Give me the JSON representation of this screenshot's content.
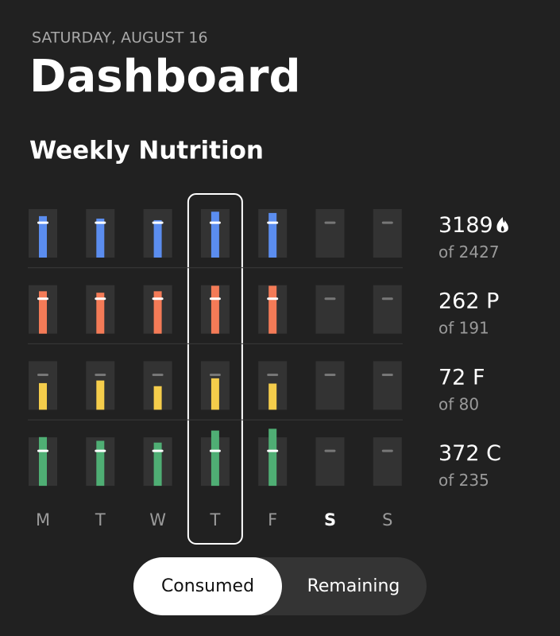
{
  "header": {
    "date": "SATURDAY, AUGUST 16",
    "title": "Dashboard"
  },
  "section_title": "Weekly Nutrition",
  "days": [
    "M",
    "T",
    "W",
    "T",
    "F",
    "S",
    "S"
  ],
  "selected_day": 3,
  "emphasized_day": 5,
  "goal_label": "of",
  "rows": [
    {
      "color": "#5b8def",
      "value": 3189,
      "unit": null,
      "goal": 2427,
      "daily": [
        2880,
        2710,
        2600,
        3189,
        3100,
        null,
        null
      ]
    },
    {
      "color": "#f47b57",
      "value": 262,
      "unit": "P",
      "goal": 191,
      "daily": [
        232,
        224,
        232,
        262,
        262,
        null,
        null
      ]
    },
    {
      "color": "#f5cd4b",
      "value": 72,
      "unit": "F",
      "goal": 80,
      "daily": [
        61,
        67,
        54,
        72,
        60,
        null,
        null
      ]
    },
    {
      "color": "#4fae74",
      "value": 372,
      "unit": "C",
      "goal": 235,
      "daily": [
        328,
        303,
        291,
        372,
        384,
        null,
        null
      ]
    }
  ],
  "toggle": [
    "Consumed",
    "Remaining"
  ],
  "toggle_active": 0
}
